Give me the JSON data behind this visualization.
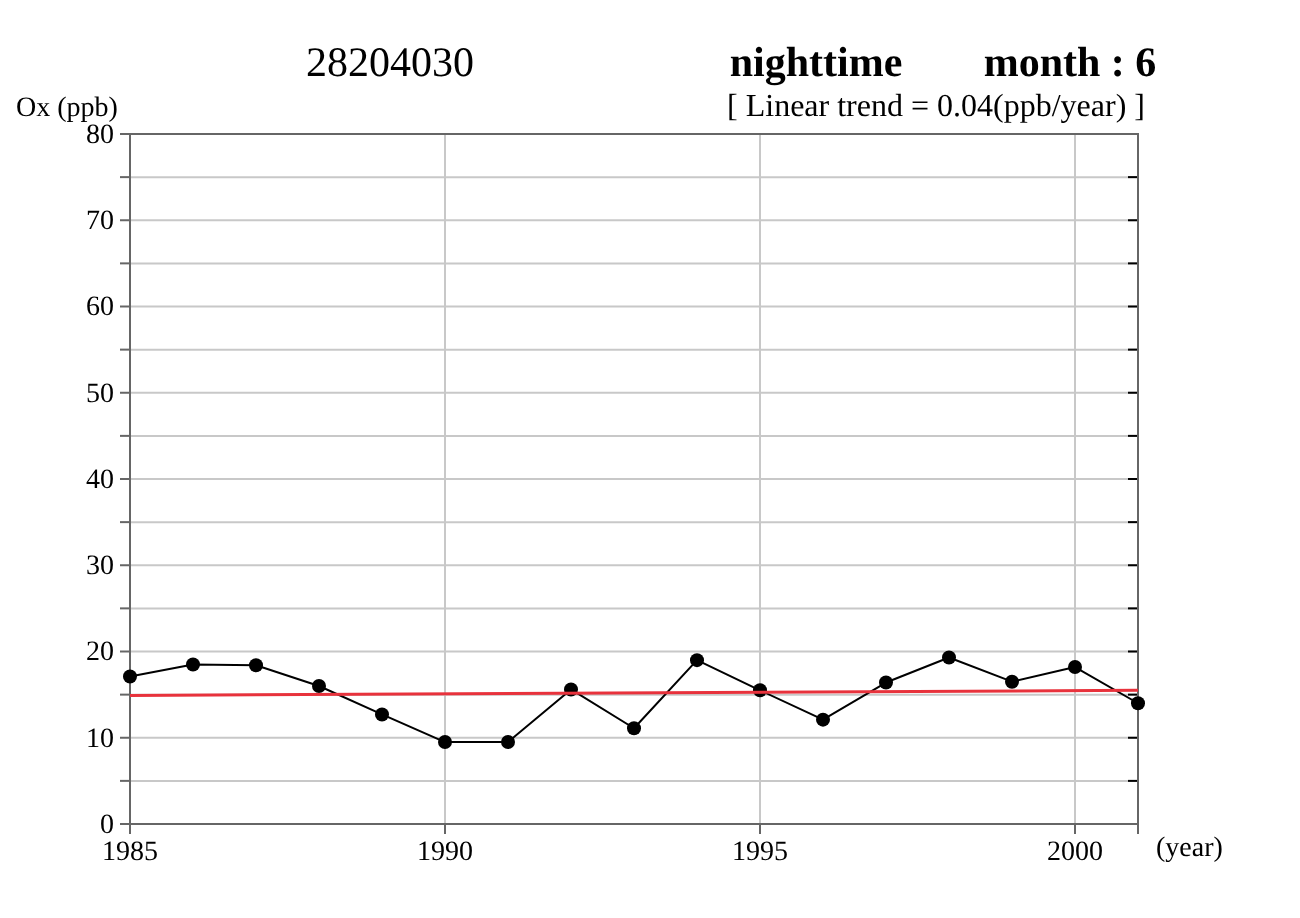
{
  "chart_data": {
    "type": "line",
    "title": "28204030",
    "subtitle": "[ Linear trend = 0.04(ppb/year) ]",
    "annotations": [
      "nighttime",
      "month : 6"
    ],
    "xlabel": "(year)",
    "ylabel": "Ox (ppb)",
    "x": [
      1985,
      1986,
      1987,
      1988,
      1989,
      1990,
      1991,
      1992,
      1993,
      1994,
      1995,
      1996,
      1997,
      1998,
      1999,
      2000,
      2001
    ],
    "series": [
      {
        "color": "#000000",
        "marker": "circle",
        "values": [
          17.1,
          18.5,
          18.4,
          16.0,
          12.7,
          9.5,
          9.5,
          15.6,
          11.1,
          19.0,
          15.5,
          12.1,
          16.4,
          19.3,
          16.5,
          18.2,
          14.0
        ]
      },
      {
        "type": "line",
        "color": "#e8323c",
        "marker": "none",
        "x": [
          1985,
          2001
        ],
        "values": [
          14.9,
          15.5
        ]
      }
    ],
    "xlim": [
      1985,
      2001
    ],
    "xticks": [
      1985,
      1990,
      1995,
      2000
    ],
    "ylim": [
      0,
      80
    ],
    "yticks": [
      0,
      {
        "value": 5,
        "label": null
      },
      10,
      {
        "value": 15,
        "label": null
      },
      20,
      {
        "value": 25,
        "label": null
      },
      30,
      {
        "value": 35,
        "label": null
      },
      40,
      {
        "value": 45,
        "label": null
      },
      50,
      {
        "value": 55,
        "label": null
      },
      60,
      {
        "value": 65,
        "label": null
      },
      70,
      {
        "value": 75,
        "label": null
      },
      80
    ],
    "grid": true
  }
}
